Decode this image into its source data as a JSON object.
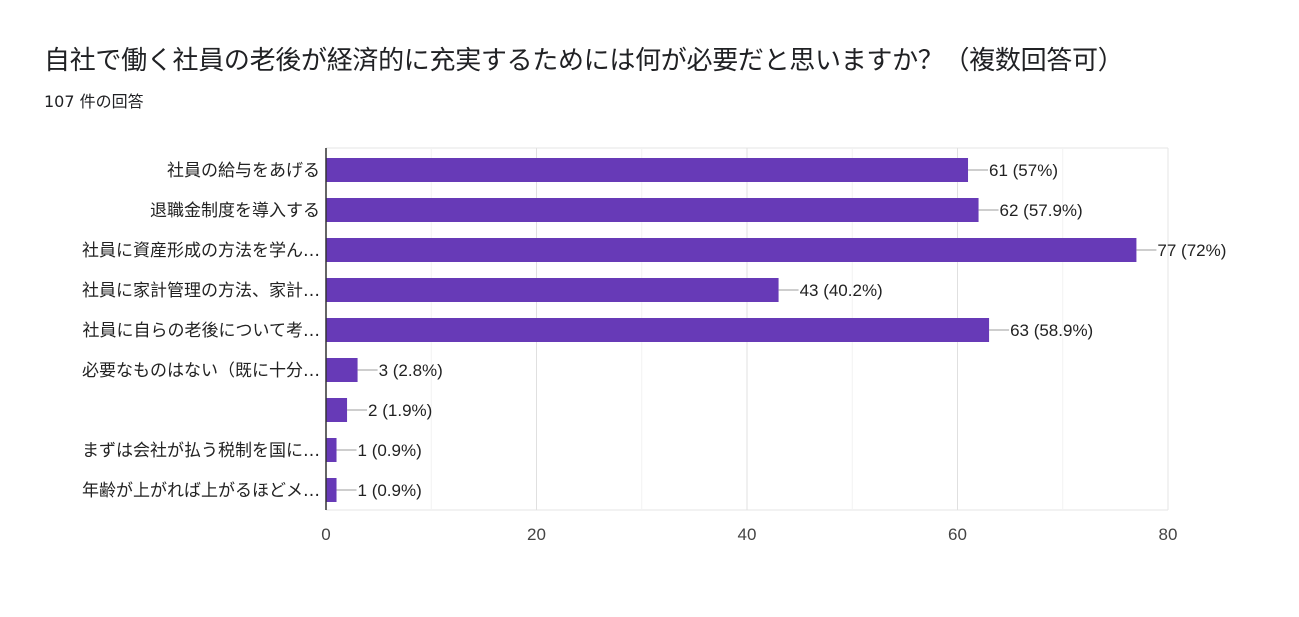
{
  "chart_data": {
    "type": "bar",
    "orientation": "horizontal",
    "title": "自社で働く社員の老後が経済的に充実するためには何が必要だと思いますか？（複数回答可）",
    "subtitle": "107 件の回答",
    "categories": [
      "社員の給与をあげる",
      "退職金制度を導入する",
      "社員に資産形成の方法を学ん…",
      "社員に家計管理の方法、家計…",
      "社員に自らの老後について考…",
      "必要なものはない（既に十分…",
      "",
      "まずは会社が払う税制を国に…",
      "年齢が上がれば上がるほどメ…"
    ],
    "values": [
      61,
      62,
      77,
      43,
      63,
      3,
      2,
      1,
      1
    ],
    "value_labels": [
      "61 (57%)",
      "62 (57.9%)",
      "77 (72%)",
      "43 (40.2%)",
      "63 (58.9%)",
      "3 (2.8%)",
      "2 (1.9%)",
      "1 (0.9%)",
      "1 (0.9%)"
    ],
    "xlim": [
      0,
      80
    ],
    "xticks": [
      "0",
      "20",
      "40",
      "60",
      "80"
    ],
    "grid": true,
    "bar_color": "#673ab7"
  }
}
